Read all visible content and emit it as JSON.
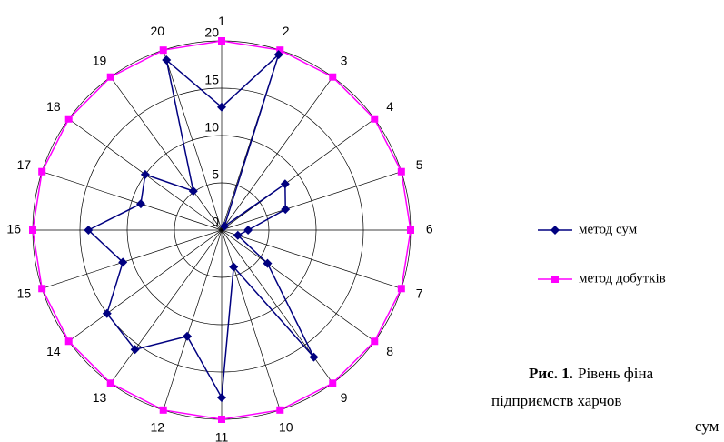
{
  "chart_data": {
    "type": "radar",
    "categories": [
      "1",
      "2",
      "3",
      "4",
      "5",
      "6",
      "7",
      "8",
      "9",
      "10",
      "11",
      "12",
      "13",
      "14",
      "15",
      "16",
      "17",
      "18",
      "19",
      "20"
    ],
    "series": [
      {
        "name": "метод сум",
        "color": "#000080",
        "marker": "diamond",
        "values": [
          13,
          19.5,
          0.5,
          8.3,
          7.1,
          2.8,
          1.8,
          6,
          16.6,
          4.1,
          17.7,
          11.8,
          15.6,
          15,
          11,
          14.1,
          9,
          10,
          5.1,
          18.9
        ]
      },
      {
        "name": "метод добутків",
        "color": "#ff00ff",
        "marker": "square",
        "values": [
          20,
          20,
          20,
          20,
          20,
          20,
          20,
          20,
          20,
          20,
          20,
          20,
          20,
          20,
          20,
          20,
          20,
          20,
          20,
          20
        ]
      }
    ],
    "rlim": [
      0,
      20
    ],
    "rticks": [
      0,
      5,
      10,
      15,
      20
    ],
    "grid": true,
    "legend": "right"
  },
  "caption": {
    "label": "Рис. 1.",
    "lines": [
      "Рівень фіна",
      "підприємств харчов",
      "сум"
    ]
  }
}
